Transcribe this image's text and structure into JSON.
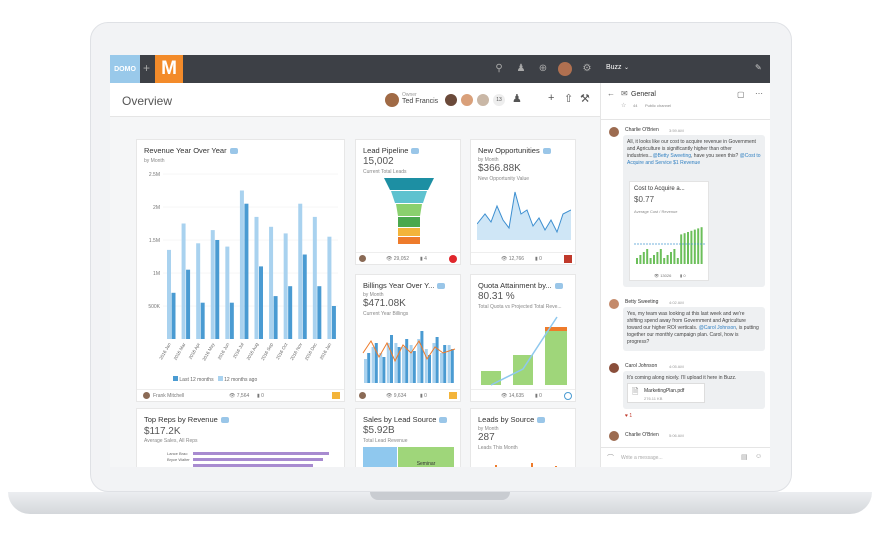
{
  "brand": {
    "domo_logo": "DOMO",
    "plus": "+",
    "m_logo": "M"
  },
  "header": {
    "title": "Overview",
    "owner_label": "Owner",
    "owner_name": "Ted Francis",
    "viewer_count": "13"
  },
  "cards": {
    "revenue": {
      "title": "Revenue Year Over Year",
      "subtitle": "by Month",
      "y_ticks": [
        "2.5M",
        "2M",
        "1.5M",
        "1M",
        "500K"
      ],
      "x_ticks": [
        "2016 Jan",
        "2016 Mar",
        "2016 Apr",
        "2016 May",
        "2016 Jun",
        "2016 Jul",
        "2016 Aug",
        "2016 Sep",
        "2016 Oct",
        "2016 Nov",
        "2016 Dec",
        "2016 Jan"
      ],
      "legend_a": "Last 12 months",
      "legend_b": "12 months ago",
      "owner": "Frank Mitchell",
      "views": "7,564",
      "comments": "0"
    },
    "lead": {
      "title": "Lead Pipeline",
      "value": "15,002",
      "sub": "Current Total Leads",
      "views": "29,052",
      "comments": "4"
    },
    "opps": {
      "title": "New Opportunities",
      "subtitle": "by Month",
      "value": "$366.88K",
      "sub": "New Opportunity Value",
      "views": "12,766",
      "comments": "0"
    },
    "billings": {
      "title": "Billings Year Over Y...",
      "subtitle": "by Month",
      "value": "$471.08K",
      "sub": "Current Year Billings",
      "views": "9,634",
      "comments": "0"
    },
    "quota": {
      "title": "Quota Attainment by...",
      "value": "80.31 %",
      "sub": "Total Quota vs Projected Total Reve...",
      "views": "14,635",
      "comments": "0"
    },
    "reps": {
      "title": "Top Reps by Revenue",
      "value": "$117.2K",
      "sub": "Average Sales, All Reps",
      "r1": "Lance Brao",
      "r2": "Bryce Walter"
    },
    "source": {
      "title": "Sales by Lead Source",
      "value": "$5.92B",
      "sub": "Total Lead Revenue",
      "seg": "Seminar"
    },
    "leads": {
      "title": "Leads by Source",
      "subtitle": "by Month",
      "value": "287",
      "sub": "Leads This Month"
    }
  },
  "buzz": {
    "title": "Buzz",
    "channel": "General",
    "members": "44",
    "channel_type": "Public channel",
    "m1_name": "Charlie O'Brien",
    "m1_time": "3:59 AM",
    "m1_text": "All, it looks like our cost to acquire revenue in Government and Agriculture is significantly higher than other industries...",
    "m1_link1": "@Betty Sweeting",
    "m1_text2": ", have you seen this?",
    "m1_link2": "@Cost to Acquire and Service $1 Revenue",
    "m1_card_title": "Cost to Acquire a...",
    "m1_card_value": "$0.77",
    "m1_card_sub": "Average Cost / Revenue",
    "m1_card_views": "13026",
    "m1_card_comments": "0",
    "m2_name": "Betty Sweeting",
    "m2_time": "4:02 AM",
    "m2_text": "Yes, my team was looking at this last week and we're shifting spend away from Government and Agriculture toward our higher ROI verticals.",
    "m2_link": "@Carol Johnson",
    "m2_text2": ", is putting together our monthly campaign plan. Carol, how is progress?",
    "m3_name": "Carol Johnson",
    "m3_time": "4:05 AM",
    "m3_text": "It's coming along nicely. I'll upload it here in Buzz.",
    "m3_file": "MarketingPlan.pdf",
    "m3_size": "276.11 KB",
    "m3_react": "1",
    "m4_name": "Charlie O'Brien",
    "m4_time": "5:06 AM",
    "input_placeholder": "Write a message..."
  },
  "colors": {
    "topbar": "#3d4046",
    "orange": "#f38b2a",
    "blue_light": "#a9d2ef",
    "blue": "#4a9bd2"
  }
}
